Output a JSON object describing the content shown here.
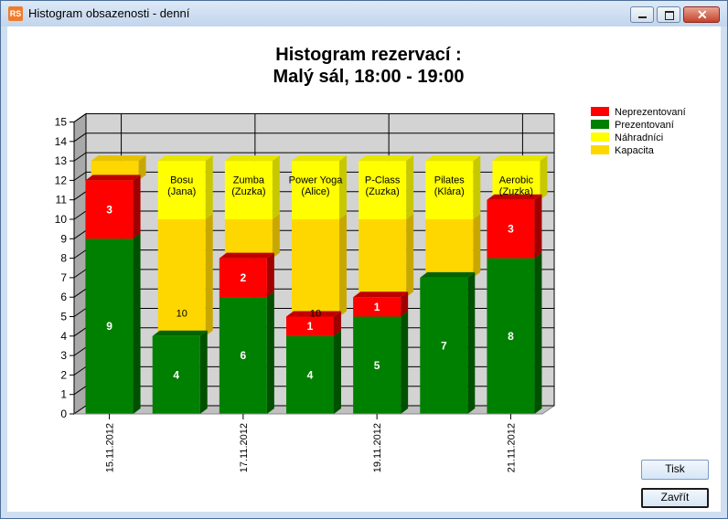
{
  "window": {
    "title": "Histogram obsazenosti - denní",
    "icon": "app-logo-icon",
    "icon_text": "RS"
  },
  "buttons": {
    "print_label": "Tisk",
    "close_label": "Zavřít"
  },
  "chart_data": {
    "type": "bar",
    "stacked": true,
    "three_d": true,
    "title": "Histogram rezervací :",
    "subtitle": "Malý sál, 18:00 - 19:00",
    "ylim": [
      0,
      15
    ],
    "yticks": [
      0,
      1,
      2,
      3,
      4,
      5,
      6,
      7,
      8,
      9,
      10,
      11,
      12,
      13,
      14,
      15
    ],
    "x_tick_labels": [
      "15.11.2012",
      "17.11.2012",
      "19.11.2012",
      "21.11.2012"
    ],
    "x_tick_positions": [
      0,
      2,
      4,
      6
    ],
    "grid": true,
    "legend_position": "top-right",
    "legend": [
      {
        "name": "Neprezentovaní",
        "color": "#ff0000"
      },
      {
        "name": "Prezentovaní",
        "color": "#008000"
      },
      {
        "name": "Náhradníci",
        "color": "#ffff00"
      },
      {
        "name": "Kapacita",
        "color": "#ffd700"
      }
    ],
    "bars": [
      {
        "label1": "",
        "label2": "",
        "prezentovani": 9,
        "neprezentovani": 3,
        "kapacita": 13,
        "kapacita_label": ""
      },
      {
        "label1": "Bosu",
        "label2": "(Jana)",
        "prezentovani": 4,
        "neprezentovani": 0,
        "kapacita": 10,
        "kapacita_label": "10"
      },
      {
        "label1": "Zumba",
        "label2": "(Zuzka)",
        "prezentovani": 6,
        "neprezentovani": 2,
        "kapacita": 10,
        "kapacita_label": ""
      },
      {
        "label1": "Power Yoga",
        "label2": "(Alice)",
        "prezentovani": 4,
        "neprezentovani": 1,
        "kapacita": 10,
        "kapacita_label": "10"
      },
      {
        "label1": "P-Class",
        "label2": "(Zuzka)",
        "prezentovani": 5,
        "neprezentovani": 1,
        "kapacita": 10,
        "kapacita_label": ""
      },
      {
        "label1": "Pilates",
        "label2": "(Klára)",
        "prezentovani": 7,
        "neprezentovani": 0,
        "kapacita": 10,
        "kapacita_label": ""
      },
      {
        "label1": "Aerobic",
        "label2": "(Zuzka)",
        "prezentovani": 8,
        "neprezentovani": 3,
        "kapacita": 10,
        "kapacita_label": ""
      }
    ],
    "top_yellow_to": 13
  }
}
